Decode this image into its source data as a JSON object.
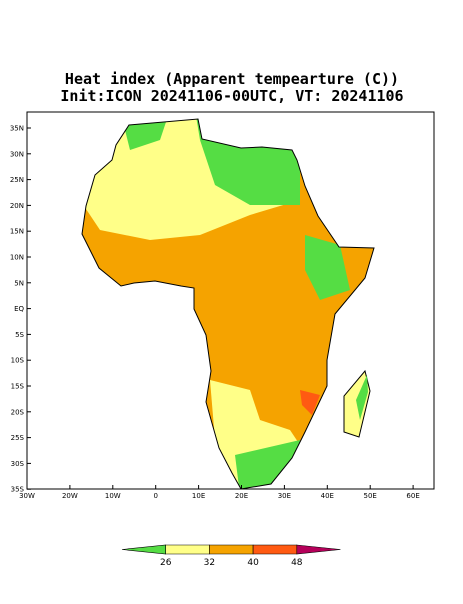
{
  "header": {
    "title": "Heat index (Apparent tempearture (C))",
    "subtitle": "Init:ICON 20241106-00UTC, VT: 20241106"
  },
  "lat_labels": [
    "35N",
    "30N",
    "25N",
    "20N",
    "15N",
    "10N",
    "5N",
    "EQ",
    "5S",
    "10S",
    "15S",
    "20S",
    "25S",
    "30S",
    "35S"
  ],
  "lon_labels": [
    "30W",
    "20W",
    "10W",
    "0",
    "10E",
    "20E",
    "30E",
    "40E",
    "50E",
    "60E"
  ],
  "colorbar": {
    "labels": [
      "26",
      "32",
      "40",
      "48"
    ],
    "colors": [
      "#55dd44",
      "#ffff88",
      "#f5a300",
      "#ff5a12",
      "#b5005a"
    ]
  }
}
